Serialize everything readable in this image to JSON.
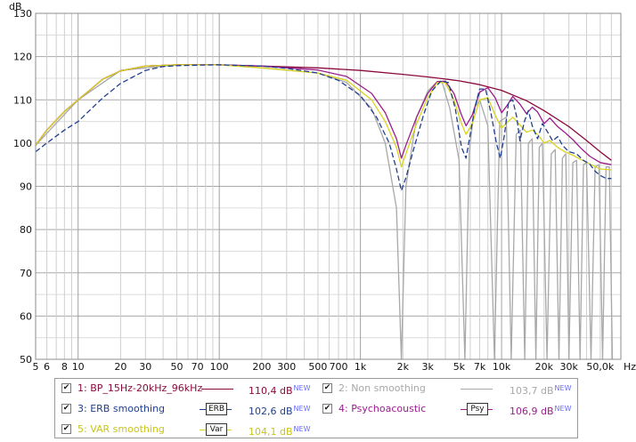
{
  "chart_data": {
    "type": "line",
    "title": "",
    "xlabel": "",
    "ylabel": "dB",
    "x_unit": "Hz",
    "x_scale": "log",
    "xlim": [
      5,
      70000
    ],
    "ylim": [
      50,
      130
    ],
    "grid": true,
    "y_ticks": [
      "130",
      "120",
      "110",
      "100",
      "90",
      "80",
      "70",
      "60",
      "50"
    ],
    "x_ticks": [
      "5",
      "6",
      "8",
      "10",
      "20",
      "30",
      "50",
      "70",
      "100",
      "200",
      "300",
      "500",
      "700",
      "1k",
      "2k",
      "3k",
      "5k",
      "7k",
      "10k",
      "20k",
      "30k",
      "50,0k",
      "Hz"
    ],
    "series": [
      {
        "name": "1: BP_15Hz-20kHz_96kHz",
        "color": "#8a0a3c",
        "dash": "solid",
        "x": [
          5,
          6,
          8,
          10,
          15,
          20,
          30,
          50,
          100,
          200,
          500,
          1000,
          2000,
          3000,
          4000,
          5000,
          7000,
          10000,
          15000,
          20000,
          30000,
          40000,
          50000,
          60000
        ],
        "y": [
          99.5,
          103,
          107.3,
          110,
          114.8,
          116.7,
          117.8,
          118.1,
          118.1,
          117.8,
          117.4,
          116.8,
          115.9,
          115.3,
          114.8,
          114.4,
          113.5,
          112.2,
          109.8,
          107.5,
          103.8,
          100.6,
          98,
          96
        ]
      },
      {
        "name": "2: Non smoothing",
        "color": "#a8a8a8",
        "dash": "solid",
        "x": [
          5,
          10,
          20,
          50,
          100,
          200,
          500,
          800,
          1200,
          1500,
          1800,
          1950,
          2100,
          2500,
          3000,
          3500,
          3800,
          4300,
          5000,
          5500,
          5900,
          6400,
          7000,
          8000,
          8900,
          9700,
          10800,
          11700,
          12700,
          13600,
          14600,
          15500,
          16500,
          17500,
          18500,
          19500,
          21000,
          22500,
          24000,
          25500,
          27000,
          28500,
          30000,
          32000,
          34000,
          36000,
          38000,
          40000,
          43000,
          46000,
          49000,
          52000,
          55000,
          58000,
          61000
        ],
        "y": [
          99.5,
          110,
          116.8,
          118.1,
          118.1,
          117.4,
          116.2,
          114,
          108,
          100,
          85,
          50,
          90,
          106,
          112,
          114.2,
          114,
          108,
          96,
          50,
          98,
          108,
          110,
          104,
          50,
          105,
          106,
          50,
          102,
          103,
          50,
          100,
          101,
          50,
          99,
          100,
          50,
          97.5,
          98.5,
          50,
          96.5,
          97.5,
          50,
          95.5,
          96,
          50,
          95,
          95.5,
          50,
          94.5,
          95,
          50,
          94.5,
          94.5,
          50
        ]
      },
      {
        "name": "3: ERB smoothing",
        "color": "#1f3f8f",
        "dash": "dash",
        "x": [
          5,
          6,
          8,
          10,
          15,
          20,
          30,
          40,
          50,
          70,
          100,
          200,
          300,
          500,
          700,
          1000,
          1300,
          1600,
          1800,
          1950,
          2100,
          2400,
          2800,
          3200,
          3700,
          4200,
          4700,
          5200,
          5600,
          6000,
          6500,
          7000,
          7700,
          8400,
          9200,
          9800,
          10500,
          11200,
          12000,
          12800,
          13500,
          14500,
          15500,
          16500,
          18000,
          19500,
          21000,
          23000,
          25000,
          27000,
          30000,
          34000,
          38000,
          42000,
          46000,
          50000,
          55000,
          60000
        ],
        "y": [
          98,
          100,
          103,
          105,
          110.5,
          113.8,
          116.8,
          117.7,
          117.9,
          118,
          118.1,
          117.8,
          117.3,
          116.2,
          114.5,
          111,
          106,
          100,
          94,
          89,
          92,
          99,
          106.5,
          112,
          114.3,
          114,
          108,
          99,
          96.5,
          102,
          108.5,
          112.5,
          112.5,
          107,
          100,
          96.5,
          102,
          109.5,
          110,
          106,
          100.5,
          105,
          107.5,
          104,
          101,
          104.5,
          102.8,
          100.5,
          101.5,
          99.5,
          98,
          97.5,
          96,
          95.2,
          93.5,
          92.5,
          91.8,
          91.8
        ]
      },
      {
        "name": "4: Psychoacoustic",
        "color": "#9a1c8c",
        "dash": "dash",
        "x": [
          5,
          6,
          8,
          10,
          15,
          20,
          30,
          50,
          100,
          200,
          500,
          800,
          1200,
          1500,
          1800,
          1950,
          2100,
          2500,
          3000,
          3500,
          4000,
          4600,
          5200,
          5600,
          6200,
          7000,
          8000,
          9000,
          10000,
          11000,
          12000,
          13500,
          15000,
          16500,
          18000,
          20000,
          22000,
          25000,
          28000,
          32000,
          36000,
          42000,
          50000,
          60000
        ],
        "y": [
          99.5,
          103,
          107.3,
          110,
          114.8,
          116.7,
          117.8,
          118.1,
          118.1,
          117.8,
          116.9,
          115.4,
          111.5,
          107,
          101,
          96.5,
          99.5,
          106,
          111.5,
          114.2,
          114.3,
          111.5,
          106.5,
          104,
          106.5,
          111.8,
          112.8,
          110.5,
          107,
          108.8,
          110.8,
          109,
          106.8,
          108.3,
          107.2,
          104.5,
          105.8,
          103.8,
          102.5,
          100.8,
          99,
          97,
          95.5,
          95
        ]
      },
      {
        "name": "5: VAR smoothing",
        "color": "#d8d41e",
        "dash": "solid",
        "x": [
          5,
          6,
          8,
          10,
          15,
          20,
          30,
          50,
          100,
          200,
          500,
          800,
          1200,
          1500,
          1800,
          1950,
          2100,
          2500,
          3000,
          3500,
          4000,
          4600,
          5200,
          5600,
          6200,
          7000,
          8000,
          9000,
          10000,
          11000,
          12000,
          13500,
          15000,
          16500,
          18000,
          20000,
          22000,
          25000,
          28000,
          32000,
          36000,
          42000,
          50000,
          60000
        ],
        "y": [
          99.5,
          103,
          107.3,
          110,
          114.8,
          116.7,
          117.8,
          118.1,
          118.1,
          117.4,
          116.2,
          114.5,
          110,
          105,
          99,
          94.5,
          97.5,
          104.5,
          110.5,
          114,
          114,
          110,
          104.5,
          102,
          104.5,
          110,
          110.5,
          106.5,
          103.5,
          104.8,
          106,
          104.2,
          102.5,
          103,
          102,
          100,
          100.6,
          99,
          98,
          97.2,
          96.3,
          95.2,
          94,
          93.8
        ]
      }
    ]
  },
  "legend": {
    "items": [
      {
        "label": "1: BP_15Hz-20kHz_96kHz",
        "value": "110,4 dB",
        "badge": "NEW",
        "tag": "",
        "checked": true,
        "color": "#8a0a3c"
      },
      {
        "label": "2: Non smoothing",
        "value": "103,7 dB",
        "badge": "NEW",
        "tag": "",
        "checked": true,
        "color": "#a8a8a8"
      },
      {
        "label": "3: ERB smoothing",
        "value": "102,6 dB",
        "badge": "NEW",
        "tag": "ERB",
        "checked": true,
        "color": "#1f3f8f"
      },
      {
        "label": "4: Psychoacoustic",
        "value": "106,9 dB",
        "badge": "NEW",
        "tag": "Psy",
        "checked": true,
        "color": "#9a1c8c"
      },
      {
        "label": "5: VAR smoothing",
        "value": "104,1 dB",
        "badge": "NEW",
        "tag": "Var",
        "checked": true,
        "color": "#d8d41e"
      }
    ]
  },
  "colors": {
    "plot_background": "#ffffff",
    "grid": "#c8c8c8",
    "frame": "#8c8c8c",
    "text": "#111111",
    "badge": "#6b6bff"
  }
}
